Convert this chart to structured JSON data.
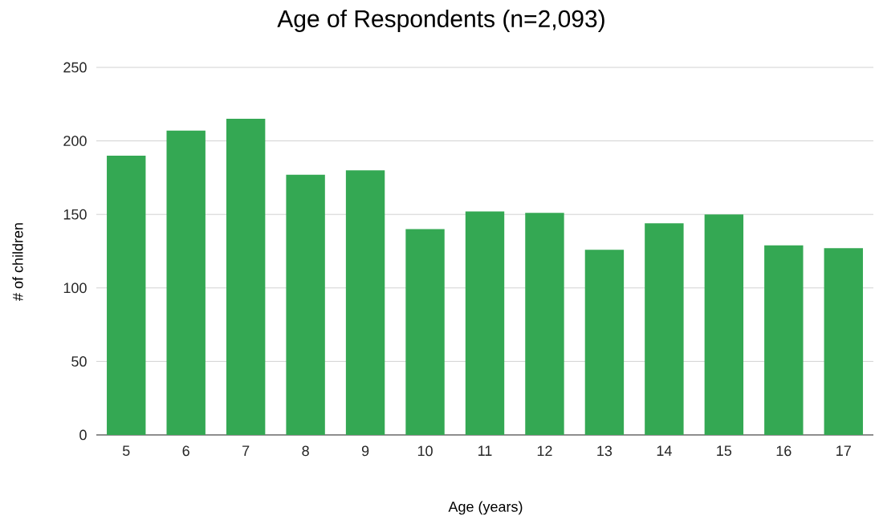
{
  "chart_data": {
    "type": "bar",
    "title": "Age of Respondents (n=2,093)",
    "xlabel": "Age (years)",
    "ylabel": "# of children",
    "categories": [
      "5",
      "6",
      "7",
      "8",
      "9",
      "10",
      "11",
      "12",
      "13",
      "14",
      "15",
      "16",
      "17"
    ],
    "values": [
      190,
      207,
      215,
      177,
      180,
      140,
      152,
      151,
      126,
      144,
      150,
      129,
      127
    ],
    "color": "#34a853",
    "ylim": [
      0,
      250
    ],
    "yticks": [
      0,
      50,
      100,
      150,
      200,
      250
    ],
    "grid": "y"
  }
}
